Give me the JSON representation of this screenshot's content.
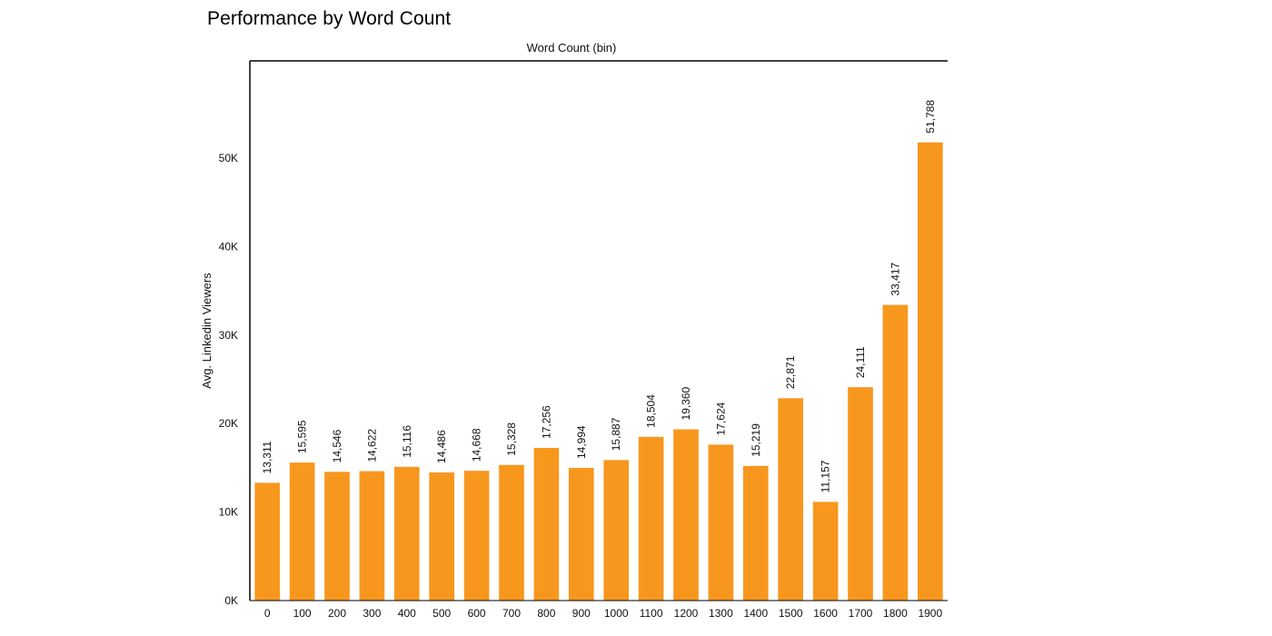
{
  "chart_data": {
    "type": "bar",
    "title": "Performance by Word Count",
    "xlabel": "Word Count (bin)",
    "ylabel": "Avg. Linkedin Viewers",
    "categories": [
      "0",
      "100",
      "200",
      "300",
      "400",
      "500",
      "600",
      "700",
      "800",
      "900",
      "1000",
      "1100",
      "1200",
      "1300",
      "1400",
      "1500",
      "1600",
      "1700",
      "1800",
      "1900"
    ],
    "values": [
      13311,
      15595,
      14546,
      14622,
      15116,
      14486,
      14668,
      15328,
      17256,
      14994,
      15887,
      18504,
      19360,
      17624,
      15219,
      22871,
      11157,
      24111,
      33417,
      51788
    ],
    "value_labels": [
      "13,311",
      "15,595",
      "14,546",
      "14,622",
      "15,116",
      "14,486",
      "14,668",
      "15,328",
      "17,256",
      "14,994",
      "15,887",
      "18,504",
      "19,360",
      "17,624",
      "15,219",
      "22,871",
      "11,157",
      "24,111",
      "33,417",
      "51,788"
    ],
    "yticks": [
      0,
      10000,
      20000,
      30000,
      40000,
      50000
    ],
    "ytick_labels": [
      "0K",
      "10K",
      "20K",
      "30K",
      "40K",
      "50K"
    ],
    "ylim": [
      0,
      61000
    ],
    "xlabel_position": "top",
    "grid": false,
    "legend": "none",
    "bar_color": "#F7971E"
  }
}
